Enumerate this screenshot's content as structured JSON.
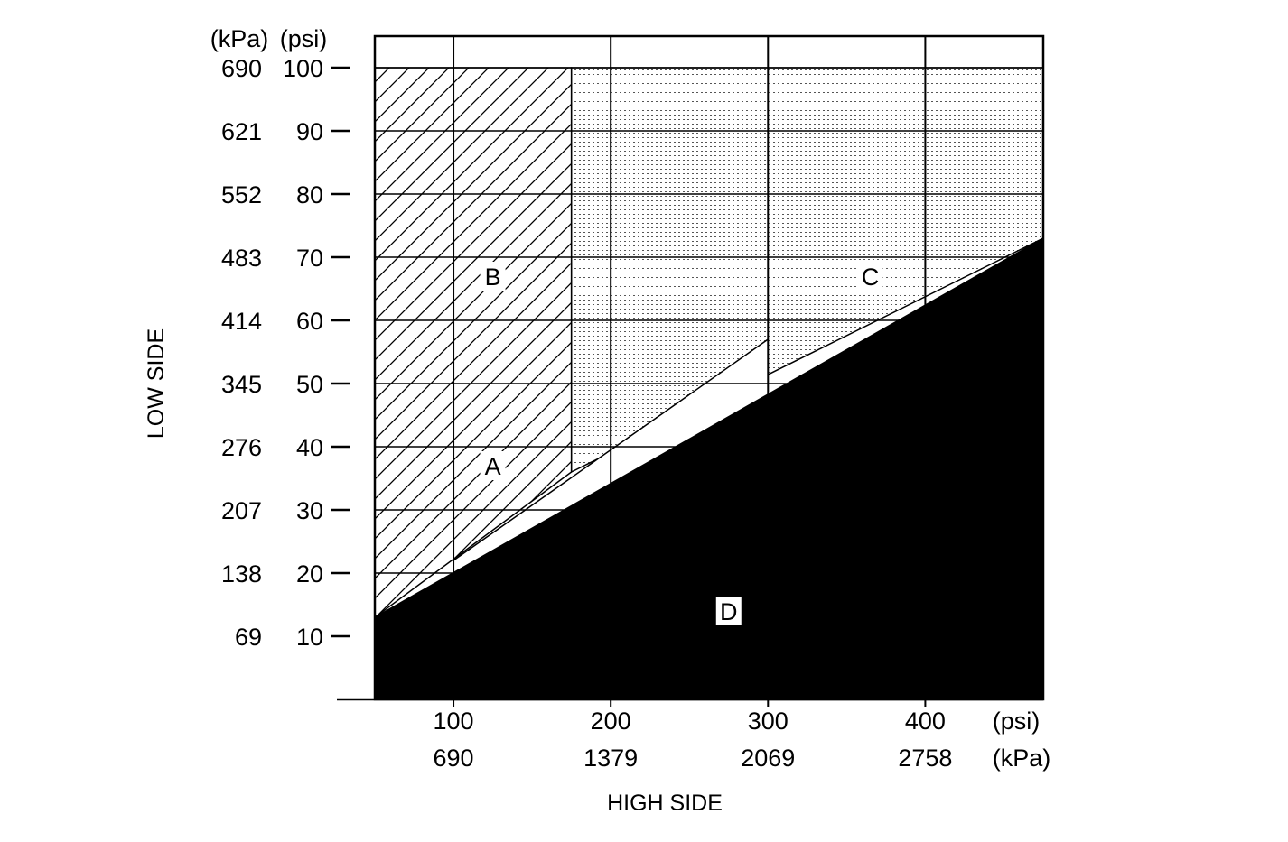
{
  "chart_data": {
    "type": "area",
    "xlabel": "HIGH SIDE",
    "ylabel": "LOW SIDE",
    "x_unit_primary": "(psi)",
    "x_unit_secondary": "(kPa)",
    "y_unit_primary": "(psi)",
    "y_unit_secondary": "(kPa)",
    "xlim": [
      50,
      475
    ],
    "ylim": [
      0,
      105
    ],
    "x_ticks": [
      {
        "psi": "100",
        "kpa": "690"
      },
      {
        "psi": "200",
        "kpa": "1379"
      },
      {
        "psi": "300",
        "kpa": "2069"
      },
      {
        "psi": "400",
        "kpa": "2758"
      }
    ],
    "y_ticks": [
      {
        "psi": "10",
        "kpa": "69"
      },
      {
        "psi": "20",
        "kpa": "138"
      },
      {
        "psi": "30",
        "kpa": "207"
      },
      {
        "psi": "40",
        "kpa": "276"
      },
      {
        "psi": "50",
        "kpa": "345"
      },
      {
        "psi": "60",
        "kpa": "414"
      },
      {
        "psi": "70",
        "kpa": "483"
      },
      {
        "psi": "80",
        "kpa": "552"
      },
      {
        "psi": "90",
        "kpa": "621"
      },
      {
        "psi": "100",
        "kpa": "690"
      }
    ],
    "grid": true,
    "regions": [
      {
        "label": "A",
        "pattern": "white",
        "points": [
          [
            100,
            18
          ],
          [
            300,
            46
          ],
          [
            300,
            57
          ],
          [
            100,
            22
          ]
        ],
        "label_pos": [
          125,
          37
        ]
      },
      {
        "label": "B",
        "pattern": "diagonal-hatch",
        "points": [
          [
            50,
            13
          ],
          [
            175,
            36
          ],
          [
            175,
            100
          ],
          [
            50,
            100
          ]
        ],
        "label_pos": [
          125,
          67
        ]
      },
      {
        "label": "C",
        "pattern": "dots",
        "points": [
          [
            175,
            36
          ],
          [
            475,
            73
          ],
          [
            475,
            100
          ],
          [
            175,
            100
          ]
        ],
        "label_pos": [
          365,
          67
        ]
      },
      {
        "label": "D",
        "pattern": "solid-black",
        "points": [
          [
            50,
            0
          ],
          [
            475,
            0
          ],
          [
            475,
            73
          ],
          [
            50,
            13
          ]
        ],
        "label_pos": [
          275,
          14
        ]
      }
    ]
  }
}
